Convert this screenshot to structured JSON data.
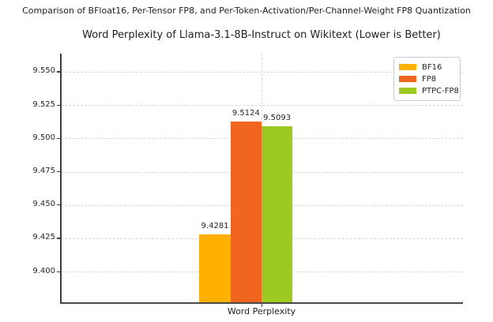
{
  "figure": {
    "suptitle": "Comparison of BFloat16, Per-Tensor FP8, and Per-Token-Activation/Per-Channel-Weight FP8 Quantization"
  },
  "chart_data": {
    "type": "bar",
    "title": "Word Perplexity of Llama-3.1-8B-Instruct on Wikitext (Lower is Better)",
    "xlabel": "Word Perplexity",
    "ylabel": "",
    "categories": [
      "Word Perplexity"
    ],
    "series": [
      {
        "name": "BF16",
        "values": [
          9.4281
        ],
        "data_label": "9.4281",
        "color": "#FFB000"
      },
      {
        "name": "FP8",
        "values": [
          9.5124
        ],
        "data_label": "9.5124",
        "color": "#F0661F"
      },
      {
        "name": "PTPC-FP8",
        "values": [
          9.5093
        ],
        "data_label": "9.5093",
        "color": "#9DC922"
      }
    ],
    "ylim": [
      9.377,
      9.5636
    ],
    "yticks": [
      9.4,
      9.425,
      9.45,
      9.475,
      9.5,
      9.525,
      9.55
    ],
    "grid": true,
    "legend_position": "upper right",
    "spines": [
      "left",
      "bottom"
    ],
    "text_color": "#262626",
    "grid_color": "#d8d8d8"
  }
}
